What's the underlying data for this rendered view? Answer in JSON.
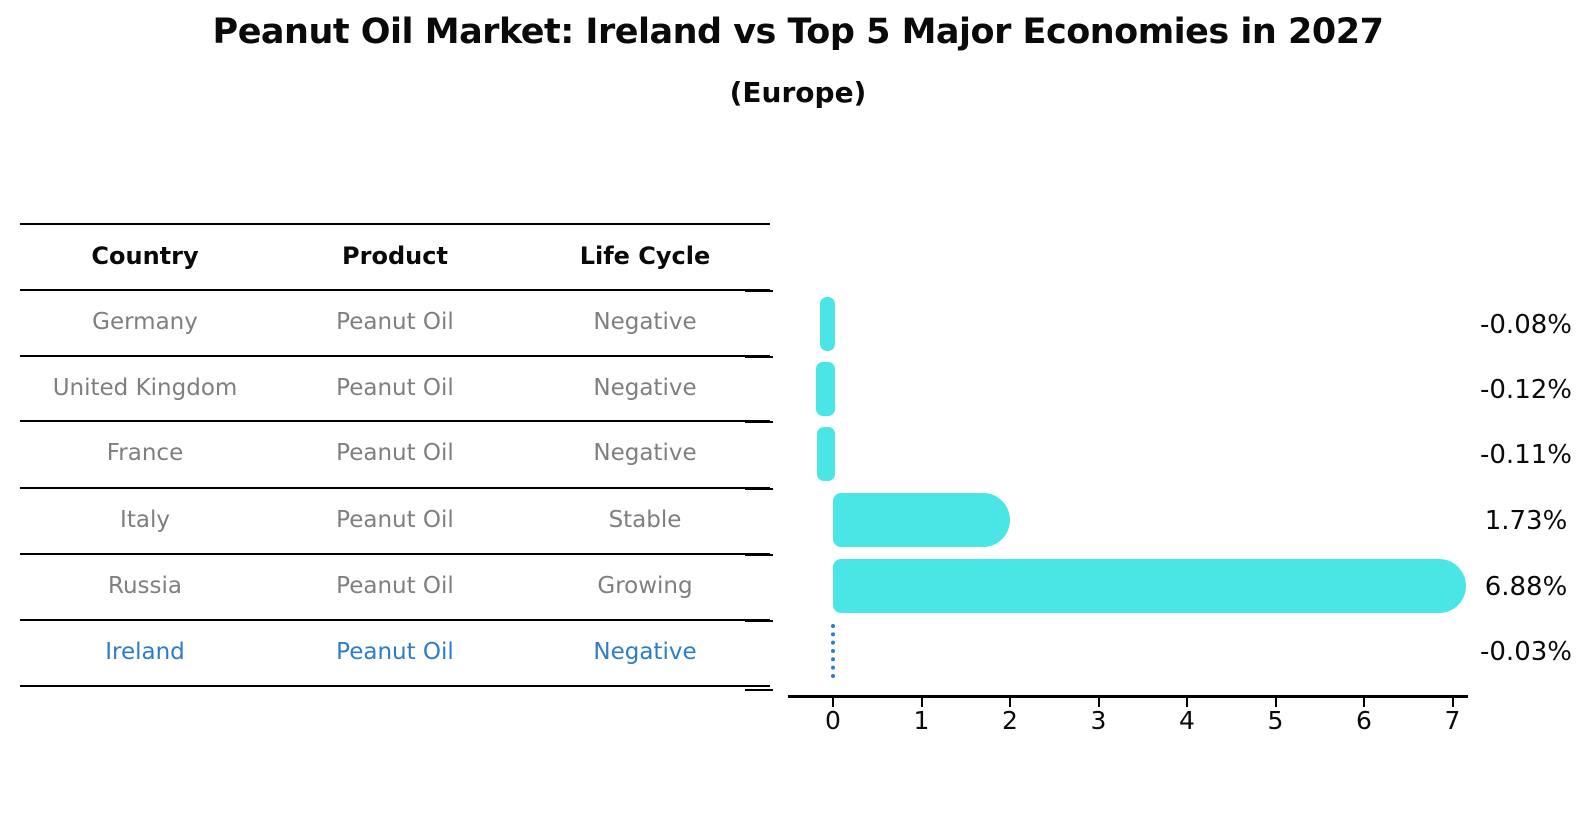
{
  "title": "Peanut Oil Market: Ireland vs Top 5 Major Economies in 2027",
  "subtitle": "(Europe)",
  "table": {
    "headers": [
      "Country",
      "Product",
      "Life Cycle"
    ],
    "rows": [
      {
        "country": "Germany",
        "product": "Peanut Oil",
        "life_cycle": "Negative"
      },
      {
        "country": "United Kingdom",
        "product": "Peanut Oil",
        "life_cycle": "Negative"
      },
      {
        "country": "France",
        "product": "Peanut Oil",
        "life_cycle": "Negative"
      },
      {
        "country": "Italy",
        "product": "Peanut Oil",
        "life_cycle": "Stable"
      },
      {
        "country": "Russia",
        "product": "Peanut Oil",
        "life_cycle": "Growing"
      },
      {
        "country": "Ireland",
        "product": "Peanut Oil",
        "life_cycle": "Negative"
      }
    ]
  },
  "chart_data": {
    "type": "bar",
    "orientation": "horizontal",
    "categories": [
      "Germany",
      "United Kingdom",
      "France",
      "Italy",
      "Russia",
      "Ireland"
    ],
    "values": [
      -0.08,
      -0.12,
      -0.11,
      1.73,
      6.88,
      -0.03
    ],
    "value_labels": [
      "-0.08%",
      "-0.12%",
      "-0.11%",
      "1.73%",
      "6.88%",
      "-0.03%"
    ],
    "x_ticks": [
      0,
      1,
      2,
      3,
      4,
      5,
      6,
      7
    ],
    "xlim": [
      -0.49,
      7.18
    ],
    "grid": false,
    "legend": false,
    "bar_color": "#4ae6e6",
    "highlight_color": "#2d7dc8",
    "highlight_index": 5,
    "highlight_style": "dotted-blue"
  },
  "colors": {
    "bar": "#4ae6e6",
    "highlight": "#2d7dc8",
    "row_text": "#7f7f7f",
    "text": "#0a0a0a"
  }
}
